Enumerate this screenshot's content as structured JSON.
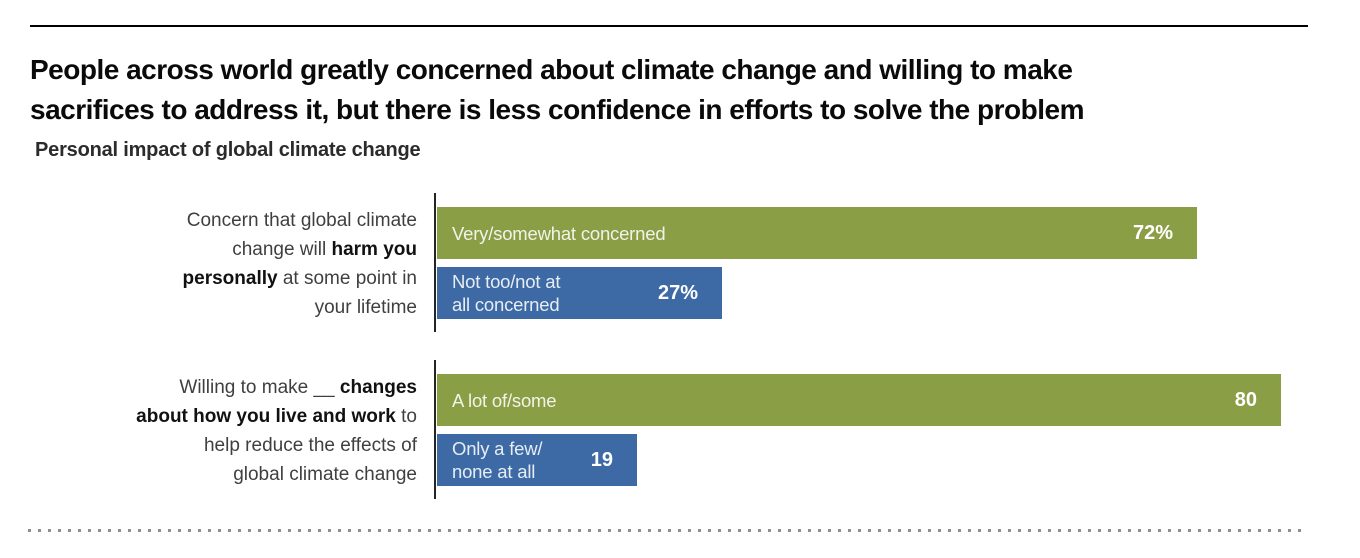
{
  "header": {
    "title_lines": [
      "People across world greatly concerned about climate change and willing to make",
      "sacrifices to address it, but there is less confidence in efforts to solve the problem"
    ],
    "subtitle": "Personal impact of global climate change"
  },
  "colors": {
    "green_bar": "#8a9e46",
    "blue_bar": "#3d69a5",
    "bar_category_text": "#eef2f6",
    "bar_value_text": "#ffffff",
    "title_text": "#0a0a0a",
    "group_label_text": "#3f3f3f",
    "top_rule": "#000000",
    "bottom_dotted_rule": "#8f8f8f"
  },
  "chart_data": {
    "type": "bar",
    "orientation": "horizontal",
    "unit": "%",
    "value_axis_range": [
      0,
      82
    ],
    "grid": false,
    "legend": false,
    "groups": [
      {
        "question": "Concern that global climate change will harm you personally at some point in your lifetime",
        "label_segments": {
          "pre": "Concern that global climate\nchange will ",
          "bold": "harm you\npersonally",
          "post": " at some point in\nyour lifetime"
        },
        "bars": [
          {
            "category": "Very/somewhat concerned",
            "value": 72,
            "value_label": "72%",
            "color": "#8a9e46"
          },
          {
            "category": "Not too/not at\nall concerned",
            "value": 27,
            "value_label": "27%",
            "color": "#3d69a5"
          }
        ]
      },
      {
        "question": "Willing to make __ changes about how you live and work to help reduce the effects of global climate change",
        "label_segments": {
          "pre": "Willing to make __ ",
          "bold": "changes\nabout how you live and work",
          "post": " to\nhelp reduce the effects of\nglobal climate change"
        },
        "bars": [
          {
            "category": "A lot of/some",
            "value": 80,
            "value_label": "80",
            "color": "#8a9e46"
          },
          {
            "category": "Only a few/\nnone at all",
            "value": 19,
            "value_label": "19",
            "color": "#3d69a5"
          }
        ]
      }
    ]
  }
}
